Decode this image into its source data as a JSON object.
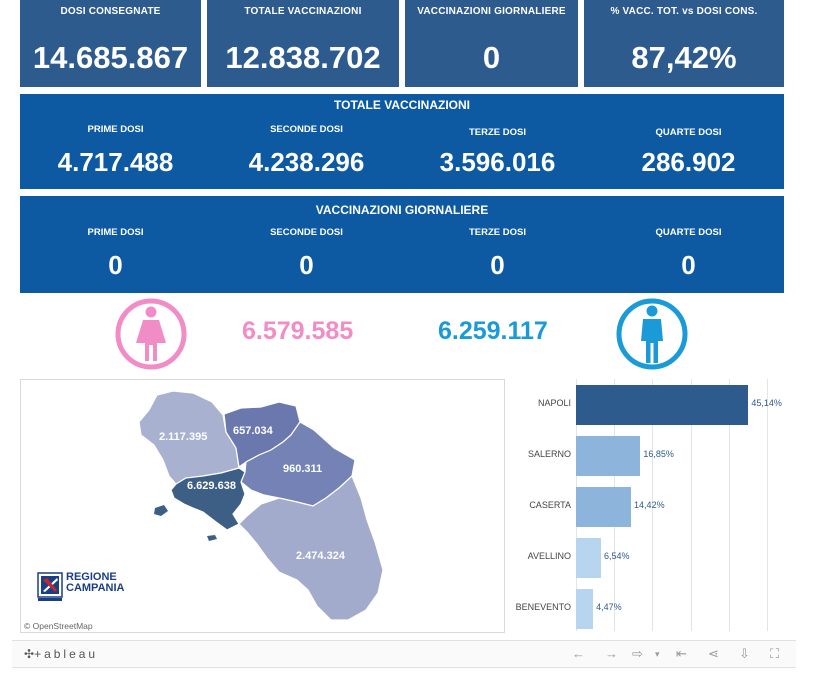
{
  "kpis": [
    {
      "label": "DOSI  CONSEGNATE",
      "value": "14.685.867"
    },
    {
      "label": "TOTALE VACCINAZIONI",
      "value": "12.838.702"
    },
    {
      "label": "VACCINAZIONI GIORNALIERE",
      "value": "0"
    },
    {
      "label": "% VACC. TOT. vs DOSI CONS.",
      "value": "87,42%"
    }
  ],
  "totale_vaccinazioni": {
    "title": "TOTALE VACCINAZIONI",
    "cols": [
      {
        "label": "PRIME DOSI",
        "value": "4.717.488"
      },
      {
        "label": "SECONDE DOSI",
        "value": "4.238.296"
      },
      {
        "label": "TERZE DOSI",
        "value": "3.596.016"
      },
      {
        "label": "QUARTE DOSI",
        "value": "286.902"
      }
    ]
  },
  "vaccinazioni_giornaliere": {
    "title": "VACCINAZIONI GIORNALIERE",
    "cols": [
      {
        "label": "PRIME DOSI",
        "value": "0"
      },
      {
        "label": "SECONDE DOSI",
        "value": "0"
      },
      {
        "label": "TERZE DOSI",
        "value": "0"
      },
      {
        "label": "QUARTE DOSI",
        "value": "0"
      }
    ]
  },
  "gender": {
    "female_value": "6.579.585",
    "male_value": "6.259.117",
    "female_color": "#f28cc6",
    "male_color": "#1a9ad6",
    "female_icon": "female-icon",
    "male_icon": "male-icon"
  },
  "map": {
    "labels": {
      "caserta": "2.117.395",
      "benevento": "657.034",
      "avellino": "960.311",
      "napoli": "6.629.638",
      "salerno": "2.474.324"
    },
    "logo_line1": "REGIONE",
    "logo_line2": "CAMPANIA",
    "attribution": "© OpenStreetMap"
  },
  "chart_data": {
    "type": "bar",
    "orientation": "horizontal",
    "categories": [
      "NAPOLI",
      "SALERNO",
      "CASERTA",
      "AVELLINO",
      "BENEVENTO"
    ],
    "values": [
      45.14,
      16.85,
      14.42,
      6.54,
      4.47
    ],
    "value_labels": [
      "45,14%",
      "16,85%",
      "14,42%",
      "6,54%",
      "4,47%"
    ],
    "colors": [
      "#2e5b8e",
      "#8db4da",
      "#8db4da",
      "#b7d5ee",
      "#b7d5ee"
    ],
    "xlim": [
      0,
      55
    ],
    "grid": true
  },
  "toolbar": {
    "logo": "+ableau",
    "buttons": [
      "undo-icon",
      "redo-icon",
      "revert-icon",
      "pause-icon",
      "share-icon",
      "download-icon",
      "fullscreen-icon"
    ]
  },
  "colors": {
    "kpi_bg": "#2e5b8e",
    "panel_bg": "#0d5aa2",
    "map_caserta": "#a8b2d0",
    "map_benevento": "#6a78ae",
    "map_avellino": "#7582b5",
    "map_napoli": "#3d5f86",
    "map_salerno": "#a2abcb"
  }
}
